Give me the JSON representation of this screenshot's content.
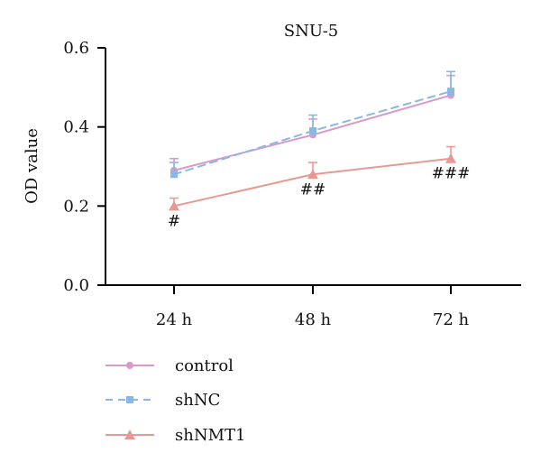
{
  "chart_data": {
    "type": "line",
    "title": "SNU-5",
    "xlabel": "",
    "ylabel": "OD value",
    "categories": [
      "24 h",
      "48 h",
      "72 h"
    ],
    "ylim": [
      0,
      0.6
    ],
    "yticks": [
      0.0,
      0.2,
      0.4,
      0.6
    ],
    "ytick_labels": [
      "0.0",
      "0.2",
      "0.4",
      "0.6"
    ],
    "grid": false,
    "legend_position": "bottom-left",
    "series": [
      {
        "name": "control",
        "values": [
          0.29,
          0.38,
          0.48
        ],
        "errors": [
          0.03,
          0.04,
          0.05
        ],
        "color": "#d89ac9",
        "marker": "circle",
        "line_style": "solid"
      },
      {
        "name": "shNC",
        "values": [
          0.28,
          0.39,
          0.49
        ],
        "errors": [
          0.03,
          0.04,
          0.05
        ],
        "color": "#8ab8e6",
        "marker": "square",
        "line_style": "dashed"
      },
      {
        "name": "shNMT1",
        "values": [
          0.2,
          0.28,
          0.32
        ],
        "errors": [
          0.02,
          0.03,
          0.03
        ],
        "color": "#e69a92",
        "marker": "triangle",
        "line_style": "solid"
      }
    ],
    "annotations": [
      {
        "category": "24 h",
        "text": "#"
      },
      {
        "category": "48 h",
        "text": "##"
      },
      {
        "category": "72 h",
        "text": "###"
      }
    ]
  }
}
